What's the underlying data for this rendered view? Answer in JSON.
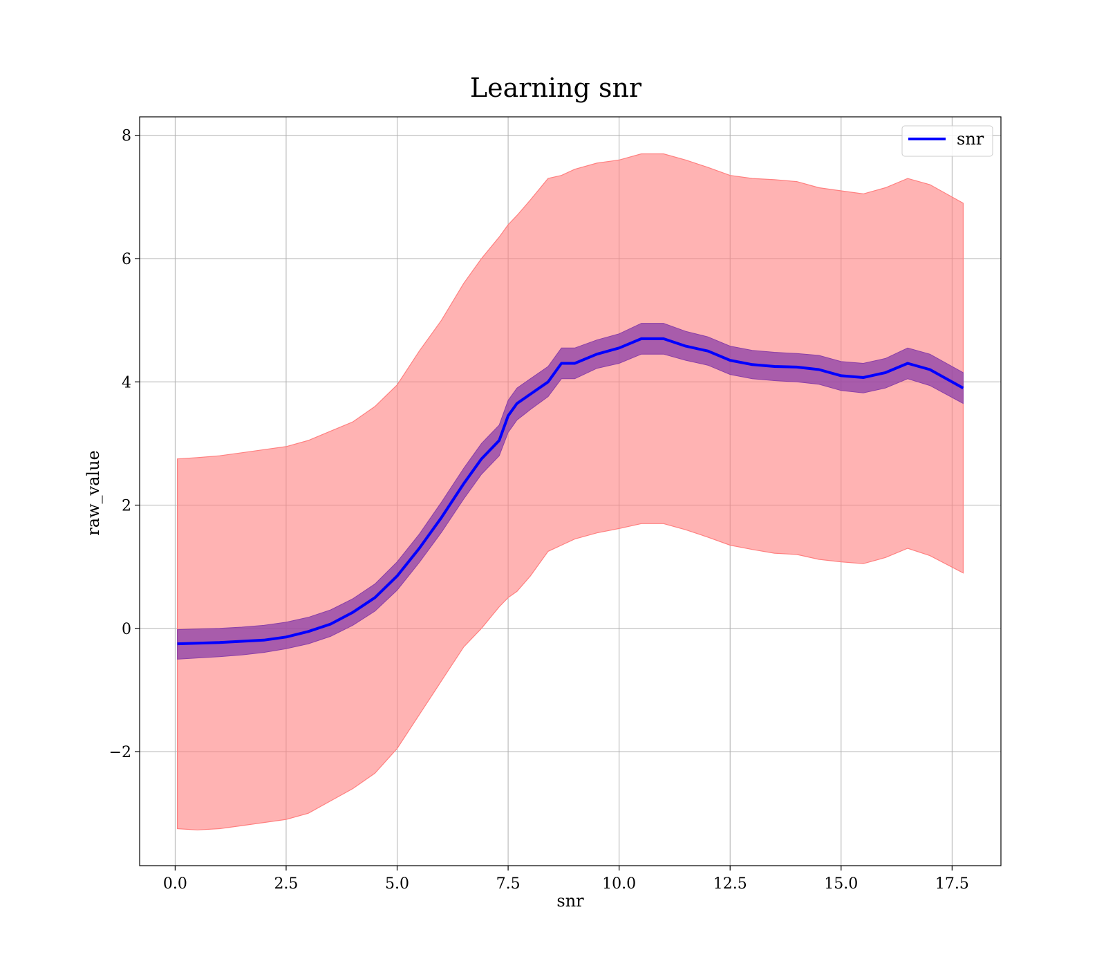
{
  "chart_data": {
    "type": "line",
    "title": "Learning snr",
    "xlabel": "snr",
    "ylabel": "raw_value",
    "xlim": [
      -0.8,
      18.6
    ],
    "ylim": [
      -3.85,
      8.3
    ],
    "xticks": [
      0.0,
      2.5,
      5.0,
      7.5,
      10.0,
      12.5,
      15.0,
      17.5
    ],
    "xtick_labels": [
      "0.0",
      "2.5",
      "5.0",
      "7.5",
      "10.0",
      "12.5",
      "15.0",
      "17.5"
    ],
    "yticks": [
      -2,
      0,
      2,
      4,
      6,
      8
    ],
    "ytick_labels": [
      "−2",
      "0",
      "2",
      "4",
      "6",
      "8"
    ],
    "grid": true,
    "legend": {
      "position": "top-right",
      "entries": [
        "snr"
      ]
    },
    "colors": {
      "line": "#0000ff",
      "outer_band": "#ff8080",
      "inner_band": "#8b3fa8"
    },
    "series": [
      {
        "name": "snr",
        "x": [
          0.05,
          0.5,
          1.0,
          1.5,
          2.0,
          2.5,
          3.0,
          3.5,
          4.0,
          4.5,
          5.0,
          5.5,
          6.0,
          6.5,
          6.9,
          7.3,
          7.5,
          7.7,
          8.0,
          8.4,
          8.7,
          9.0,
          9.5,
          10.0,
          10.5,
          11.0,
          11.5,
          12.0,
          12.5,
          13.0,
          13.5,
          14.0,
          14.5,
          15.0,
          15.5,
          16.0,
          16.5,
          17.0,
          17.75
        ],
        "y": [
          -0.25,
          -0.24,
          -0.23,
          -0.21,
          -0.19,
          -0.14,
          -0.05,
          0.07,
          0.26,
          0.5,
          0.85,
          1.3,
          1.8,
          2.35,
          2.75,
          3.05,
          3.45,
          3.65,
          3.8,
          4.0,
          4.3,
          4.3,
          4.45,
          4.55,
          4.7,
          4.7,
          4.58,
          4.5,
          4.35,
          4.28,
          4.25,
          4.24,
          4.2,
          4.1,
          4.07,
          4.15,
          4.3,
          4.2,
          3.9
        ],
        "inner_lower": [
          -0.5,
          -0.48,
          -0.46,
          -0.43,
          -0.39,
          -0.33,
          -0.25,
          -0.13,
          0.05,
          0.28,
          0.62,
          1.07,
          1.56,
          2.1,
          2.5,
          2.8,
          3.18,
          3.38,
          3.55,
          3.76,
          4.05,
          4.05,
          4.22,
          4.3,
          4.45,
          4.45,
          4.35,
          4.27,
          4.12,
          4.05,
          4.02,
          4.0,
          3.96,
          3.86,
          3.82,
          3.9,
          4.05,
          3.94,
          3.65
        ],
        "inner_upper": [
          -0.02,
          -0.01,
          0.0,
          0.02,
          0.05,
          0.1,
          0.18,
          0.3,
          0.48,
          0.72,
          1.08,
          1.53,
          2.05,
          2.6,
          3.0,
          3.3,
          3.7,
          3.9,
          4.05,
          4.25,
          4.55,
          4.55,
          4.68,
          4.78,
          4.95,
          4.95,
          4.82,
          4.73,
          4.58,
          4.51,
          4.48,
          4.46,
          4.43,
          4.33,
          4.3,
          4.38,
          4.55,
          4.45,
          4.15
        ],
        "outer_lower": [
          -3.25,
          -3.27,
          -3.25,
          -3.2,
          -3.15,
          -3.1,
          -3.0,
          -2.8,
          -2.6,
          -2.35,
          -1.95,
          -1.4,
          -0.85,
          -0.3,
          0.0,
          0.35,
          0.5,
          0.6,
          0.85,
          1.25,
          1.35,
          1.45,
          1.55,
          1.62,
          1.7,
          1.7,
          1.6,
          1.48,
          1.35,
          1.28,
          1.22,
          1.2,
          1.12,
          1.08,
          1.05,
          1.15,
          1.3,
          1.18,
          0.9
        ],
        "outer_upper": [
          2.75,
          2.77,
          2.8,
          2.85,
          2.9,
          2.95,
          3.05,
          3.2,
          3.35,
          3.6,
          3.95,
          4.5,
          5.0,
          5.6,
          6.0,
          6.35,
          6.55,
          6.7,
          6.95,
          7.3,
          7.35,
          7.45,
          7.55,
          7.6,
          7.7,
          7.7,
          7.6,
          7.48,
          7.35,
          7.3,
          7.28,
          7.25,
          7.15,
          7.1,
          7.05,
          7.15,
          7.3,
          7.2,
          6.9
        ]
      }
    ]
  }
}
